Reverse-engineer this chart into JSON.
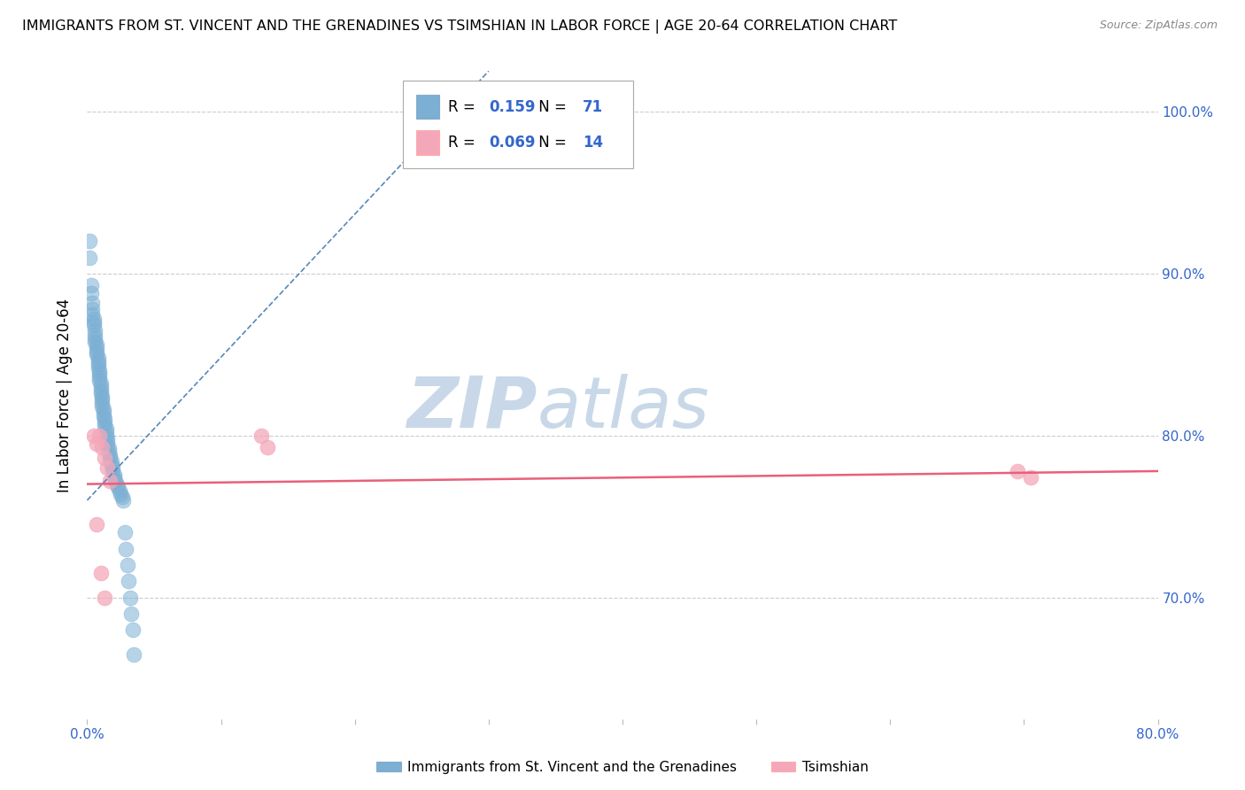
{
  "title": "IMMIGRANTS FROM ST. VINCENT AND THE GRENADINES VS TSIMSHIAN IN LABOR FORCE | AGE 20-64 CORRELATION CHART",
  "source": "Source: ZipAtlas.com",
  "ylabel": "In Labor Force | Age 20-64",
  "xlim": [
    0.0,
    0.8
  ],
  "ylim": [
    0.625,
    1.025
  ],
  "xticks": [
    0.0,
    0.1,
    0.2,
    0.3,
    0.4,
    0.5,
    0.6,
    0.7,
    0.8
  ],
  "xtick_labels": [
    "0.0%",
    "",
    "",
    "",
    "",
    "",
    "",
    "",
    "80.0%"
  ],
  "yticks": [
    1.0,
    0.9,
    0.8,
    0.7
  ],
  "ytick_labels": [
    "100.0%",
    "90.0%",
    "80.0%",
    "70.0%"
  ],
  "blue_R": "0.159",
  "blue_N": "71",
  "pink_R": "0.069",
  "pink_N": "14",
  "blue_color": "#7BAFD4",
  "pink_color": "#F4A7B9",
  "blue_line_color": "#5588BB",
  "pink_line_color": "#E8607A",
  "legend_label_blue": "Immigrants from St. Vincent and the Grenadines",
  "legend_label_pink": "Tsimshian",
  "blue_dots_x": [
    0.002,
    0.002,
    0.003,
    0.003,
    0.004,
    0.004,
    0.004,
    0.005,
    0.005,
    0.005,
    0.006,
    0.006,
    0.006,
    0.006,
    0.007,
    0.007,
    0.007,
    0.007,
    0.008,
    0.008,
    0.008,
    0.008,
    0.009,
    0.009,
    0.009,
    0.009,
    0.01,
    0.01,
    0.01,
    0.01,
    0.011,
    0.011,
    0.011,
    0.011,
    0.012,
    0.012,
    0.012,
    0.013,
    0.013,
    0.013,
    0.014,
    0.014,
    0.014,
    0.015,
    0.015,
    0.015,
    0.016,
    0.016,
    0.017,
    0.017,
    0.018,
    0.018,
    0.019,
    0.019,
    0.02,
    0.02,
    0.021,
    0.022,
    0.023,
    0.024,
    0.025,
    0.026,
    0.027,
    0.028,
    0.029,
    0.03,
    0.031,
    0.032,
    0.033,
    0.034,
    0.035
  ],
  "blue_dots_y": [
    0.92,
    0.91,
    0.893,
    0.888,
    0.882,
    0.878,
    0.875,
    0.872,
    0.87,
    0.868,
    0.865,
    0.862,
    0.86,
    0.858,
    0.856,
    0.854,
    0.852,
    0.85,
    0.848,
    0.846,
    0.844,
    0.842,
    0.84,
    0.838,
    0.836,
    0.834,
    0.832,
    0.83,
    0.828,
    0.826,
    0.824,
    0.822,
    0.82,
    0.818,
    0.816,
    0.814,
    0.812,
    0.81,
    0.808,
    0.806,
    0.804,
    0.802,
    0.8,
    0.798,
    0.796,
    0.794,
    0.792,
    0.79,
    0.788,
    0.786,
    0.784,
    0.782,
    0.78,
    0.778,
    0.776,
    0.774,
    0.772,
    0.77,
    0.768,
    0.766,
    0.764,
    0.762,
    0.76,
    0.74,
    0.73,
    0.72,
    0.71,
    0.7,
    0.69,
    0.68,
    0.665
  ],
  "pink_dots_x": [
    0.005,
    0.007,
    0.009,
    0.011,
    0.013,
    0.015,
    0.017,
    0.13,
    0.135,
    0.695,
    0.705,
    0.007,
    0.01,
    0.013
  ],
  "pink_dots_y": [
    0.8,
    0.795,
    0.8,
    0.793,
    0.786,
    0.78,
    0.772,
    0.8,
    0.793,
    0.778,
    0.774,
    0.745,
    0.715,
    0.7
  ],
  "blue_line_x0": 0.0,
  "blue_line_y0": 0.76,
  "blue_line_x1": 0.3,
  "blue_line_y1": 1.025,
  "pink_line_x0": 0.0,
  "pink_line_y0": 0.77,
  "pink_line_x1": 0.8,
  "pink_line_y1": 0.778,
  "watermark_zip": "ZIP",
  "watermark_atlas": "atlas",
  "watermark_color": "#C8D8E8",
  "background_color": "#FFFFFF",
  "grid_color": "#CCCCCC",
  "title_fontsize": 11.5,
  "source_fontsize": 9,
  "tick_fontsize": 11,
  "ylabel_fontsize": 12
}
